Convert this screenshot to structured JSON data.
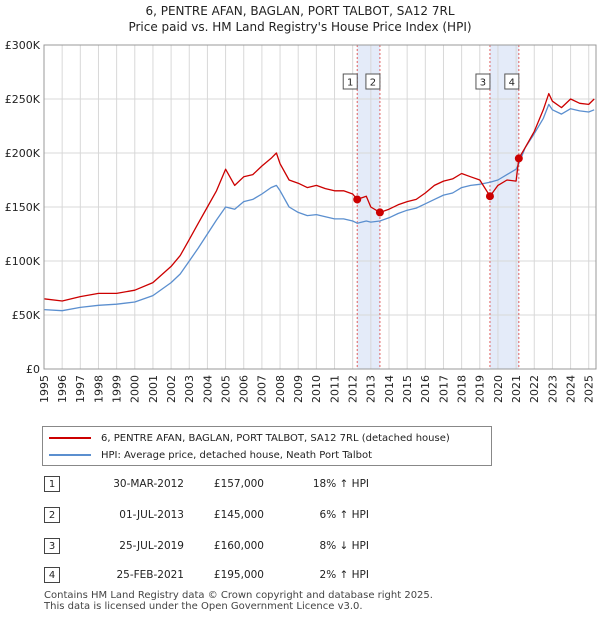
{
  "title": "6, PENTRE AFAN, BAGLAN, PORT TALBOT, SA12 7RL",
  "subtitle": "Price paid vs. HM Land Registry's House Price Index (HPI)",
  "legend": {
    "property": "6, PENTRE AFAN, BAGLAN, PORT TALBOT, SA12 7RL (detached house)",
    "hpi": "HPI: Average price, detached house, Neath Port Talbot"
  },
  "colors": {
    "property": "#cc0000",
    "hpi": "#5b8fcf",
    "shade": "#dde6f7",
    "marker_line": "#e06060"
  },
  "sales": [
    {
      "num": "1",
      "date": "30-MAR-2012",
      "price": "£157,000",
      "hpi": "18% ↑ HPI"
    },
    {
      "num": "2",
      "date": "01-JUL-2013",
      "price": "£145,000",
      "hpi": "6% ↑ HPI"
    },
    {
      "num": "3",
      "date": "25-JUL-2019",
      "price": "£160,000",
      "hpi": "8% ↓ HPI"
    },
    {
      "num": "4",
      "date": "25-FEB-2021",
      "price": "£195,000",
      "hpi": "2% ↑ HPI"
    }
  ],
  "footer": {
    "line1": "Contains HM Land Registry data © Crown copyright and database right 2025.",
    "line2": "This data is licensed under the Open Government Licence v3.0."
  },
  "chart_data": {
    "type": "line",
    "title": "6, PENTRE AFAN, BAGLAN, PORT TALBOT, SA12 7RL",
    "subtitle": "Price paid vs. HM Land Registry's House Price Index (HPI)",
    "xlim": [
      1995,
      2025.4
    ],
    "ylim": [
      0,
      300000
    ],
    "y_ticks": [
      0,
      50000,
      100000,
      150000,
      200000,
      250000,
      300000
    ],
    "y_tick_labels": [
      "£0",
      "£50K",
      "£100K",
      "£150K",
      "£200K",
      "£250K",
      "£300K"
    ],
    "x_ticks": [
      1995,
      1996,
      1997,
      1998,
      1999,
      2000,
      2001,
      2002,
      2003,
      2004,
      2005,
      2006,
      2007,
      2008,
      2009,
      2010,
      2011,
      2012,
      2013,
      2014,
      2015,
      2016,
      2017,
      2018,
      2019,
      2020,
      2021,
      2022,
      2023,
      2024,
      2025
    ],
    "grid": true,
    "shaded_ranges": [
      [
        2012.25,
        2013.5
      ],
      [
        2019.56,
        2021.15
      ]
    ],
    "series": [
      {
        "name": "6, PENTRE AFAN, BAGLAN, PORT TALBOT, SA12 7RL (detached house)",
        "x": [
          1995,
          1996,
          1997,
          1998,
          1999,
          2000,
          2001,
          2002,
          2002.5,
          2003,
          2003.5,
          2004,
          2004.5,
          2005,
          2005.5,
          2006,
          2006.5,
          2007,
          2007.5,
          2007.8,
          2008,
          2008.5,
          2009,
          2009.5,
          2010,
          2010.5,
          2011,
          2011.5,
          2012,
          2012.25,
          2012.75,
          2013,
          2013.5,
          2014,
          2014.5,
          2015,
          2015.5,
          2016,
          2016.5,
          2017,
          2017.5,
          2018,
          2018.5,
          2019,
          2019.56,
          2020,
          2020.5,
          2021,
          2021.15,
          2021.5,
          2022,
          2022.5,
          2022.8,
          2023,
          2023.5,
          2024,
          2024.5,
          2025,
          2025.3
        ],
        "values": [
          65000,
          63000,
          67000,
          70000,
          70000,
          73000,
          80000,
          95000,
          105000,
          120000,
          135000,
          150000,
          165000,
          185000,
          170000,
          178000,
          180000,
          188000,
          195000,
          200000,
          190000,
          175000,
          172000,
          168000,
          170000,
          167000,
          165000,
          165000,
          162000,
          157000,
          160000,
          150000,
          145000,
          148000,
          152000,
          155000,
          157000,
          163000,
          170000,
          174000,
          176000,
          181000,
          178000,
          175000,
          160000,
          170000,
          175000,
          174000,
          195000,
          205000,
          220000,
          240000,
          255000,
          248000,
          242000,
          250000,
          246000,
          245000,
          250000
        ]
      },
      {
        "name": "HPI: Average price, detached house, Neath Port Talbot",
        "x": [
          1995,
          1996,
          1997,
          1998,
          1999,
          2000,
          2001,
          2002,
          2002.5,
          2003,
          2003.5,
          2004,
          2004.5,
          2005,
          2005.5,
          2006,
          2006.5,
          2007,
          2007.5,
          2007.8,
          2008,
          2008.5,
          2009,
          2009.5,
          2010,
          2010.5,
          2011,
          2011.5,
          2012,
          2012.25,
          2012.75,
          2013,
          2013.5,
          2014,
          2014.5,
          2015,
          2015.5,
          2016,
          2016.5,
          2017,
          2017.5,
          2018,
          2018.5,
          2019,
          2019.56,
          2020,
          2020.5,
          2021,
          2021.15,
          2021.5,
          2022,
          2022.5,
          2022.8,
          2023,
          2023.5,
          2024,
          2024.5,
          2025,
          2025.3
        ],
        "values": [
          55000,
          54000,
          57000,
          59000,
          60000,
          62000,
          68000,
          80000,
          88000,
          100000,
          112000,
          125000,
          138000,
          150000,
          148000,
          155000,
          157000,
          162000,
          168000,
          170000,
          165000,
          150000,
          145000,
          142000,
          143000,
          141000,
          139000,
          139000,
          137000,
          135000,
          137000,
          136000,
          137000,
          140000,
          144000,
          147000,
          149000,
          153000,
          157000,
          161000,
          163000,
          168000,
          170000,
          171000,
          173000,
          175000,
          180000,
          185000,
          190000,
          205000,
          218000,
          232000,
          245000,
          240000,
          236000,
          241000,
          239000,
          238000,
          240000
        ]
      }
    ],
    "markers": [
      {
        "label": "1",
        "x": 2012.25,
        "y": 157000
      },
      {
        "label": "2",
        "x": 2013.5,
        "y": 145000
      },
      {
        "label": "3",
        "x": 2019.56,
        "y": 160000
      },
      {
        "label": "4",
        "x": 2021.15,
        "y": 195000
      }
    ]
  }
}
